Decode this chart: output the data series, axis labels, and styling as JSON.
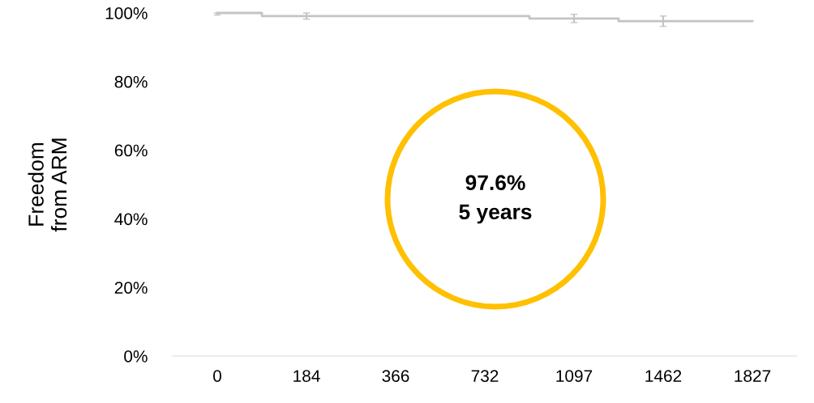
{
  "chart_data": {
    "type": "step",
    "ylabel": "Freedom\nfrom ARM",
    "annotations": [
      "97.6%\n5 years"
    ],
    "categories": [
      "0",
      "184",
      "366",
      "732",
      "1097",
      "1462",
      "1827"
    ],
    "series": [
      {
        "values": [
          100,
          99.1,
          99.1,
          99.1,
          98.4,
          97.6,
          97.6
        ],
        "color": "#c4c4c4",
        "errors": [
          [
            99.4,
            100
          ],
          0.9,
          null,
          null,
          1.2,
          1.5,
          null
        ]
      }
    ],
    "ylim": [
      0,
      100
    ],
    "yticks": [
      {
        "value": 0,
        "label": "0%"
      },
      {
        "value": 20,
        "label": "20%"
      },
      {
        "value": 40,
        "label": "40%"
      },
      {
        "value": 60,
        "label": "60%"
      },
      {
        "value": 80,
        "label": "80%"
      },
      {
        "value": 100,
        "label": "100%"
      }
    ],
    "grid": false
  }
}
